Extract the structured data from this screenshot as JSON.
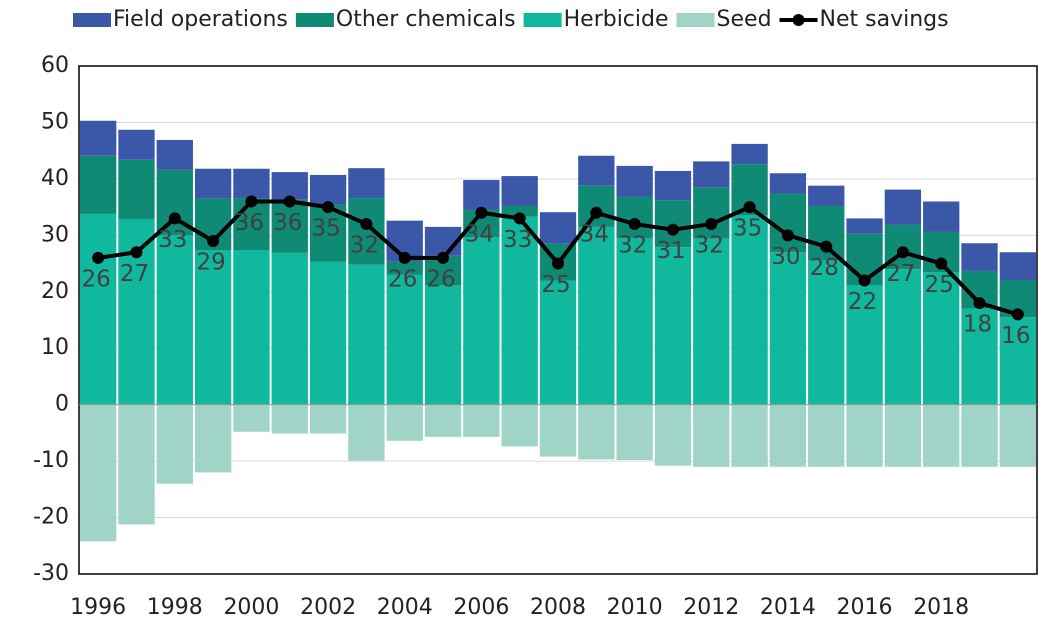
{
  "chart_data": {
    "type": "bar",
    "categories": [
      "1996",
      null,
      "1998",
      null,
      "2000",
      null,
      "2002",
      null,
      "2004",
      null,
      "2006",
      null,
      "2008",
      null,
      "2010",
      null,
      "2012",
      null,
      "2014",
      null,
      "2016",
      null,
      "2018",
      null,
      null
    ],
    "series": [
      {
        "name": "Field operations",
        "color": "#3a57a8",
        "values": [
          6.2,
          5.3,
          5.3,
          5.3,
          5.2,
          4.9,
          5.3,
          5.3,
          7.3,
          5.1,
          5.3,
          5.3,
          5.6,
          5.3,
          5.5,
          5.2,
          4.6,
          3.6,
          3.6,
          3.6,
          2.7,
          6.2,
          5.4,
          4.9,
          5.0
        ]
      },
      {
        "name": "Other chemicals",
        "color": "#0e8a75",
        "values": [
          10.3,
          10.5,
          11.6,
          9.1,
          9.2,
          9.4,
          10.1,
          11.8,
          2.3,
          5.2,
          4.8,
          1.9,
          6.5,
          7.3,
          7.3,
          8.3,
          9.1,
          9.0,
          10.4,
          9.7,
          9.1,
          7.9,
          7.1,
          6.7,
          6.5
        ]
      },
      {
        "name": "Herbicide",
        "color": "#10b89e",
        "values": [
          33.8,
          32.9,
          30.0,
          27.4,
          27.4,
          26.9,
          25.3,
          24.8,
          23.0,
          21.2,
          29.7,
          33.3,
          22.0,
          31.5,
          29.5,
          27.9,
          29.4,
          33.6,
          27.0,
          25.5,
          21.2,
          24.0,
          23.5,
          17.0,
          15.5
        ]
      },
      {
        "name": "Seed",
        "color": "#9fd4c6",
        "values": [
          -24.2,
          -21.2,
          -14,
          -12,
          -4.8,
          -5.1,
          -5.1,
          -9.9,
          -6.4,
          -5.7,
          -5.7,
          -7.4,
          -9.2,
          -9.7,
          -9.8,
          -10.8,
          -11,
          -11,
          -11,
          -11,
          -11,
          -11,
          -11,
          -11,
          -11
        ]
      },
      {
        "name": "Net savings",
        "color": "#000000",
        "type": "line",
        "values": [
          26,
          27,
          33,
          29,
          36,
          36,
          35,
          32,
          26,
          26,
          34,
          33,
          25,
          34,
          32,
          31,
          32,
          35,
          30,
          28,
          22,
          27,
          25,
          18,
          16
        ]
      }
    ],
    "ylim": [
      -30,
      60
    ],
    "yticks": [
      -30,
      -20,
      -10,
      0,
      10,
      20,
      30,
      40,
      50,
      60
    ],
    "grid": true
  }
}
